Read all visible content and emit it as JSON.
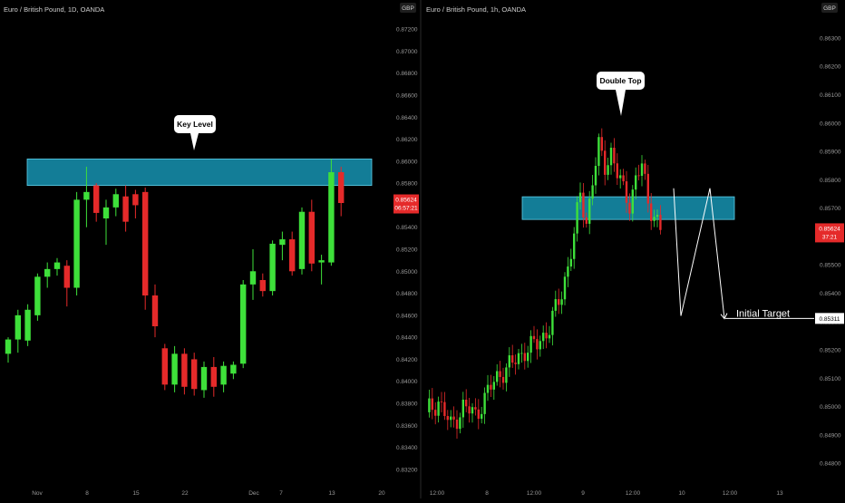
{
  "colors": {
    "background": "#000000",
    "up": "#3ee03a",
    "down": "#e52a2a",
    "zone_fill": "#1aa7c9",
    "zone_stroke": "#5fd0ea",
    "axis_text": "#9a9a9a",
    "price_tag": "#e52a2a",
    "target_tag_bg": "#ffffff",
    "divider": "#2a2a2a"
  },
  "chart_data": [
    {
      "type": "candlestick",
      "title": "Euro / British Pound, 1D, OANDA",
      "currency": "GBP",
      "y_ticks": [
        "0.87200",
        "0.87000",
        "0.86800",
        "0.86600",
        "0.86400",
        "0.86200",
        "0.86000",
        "0.85800",
        "0.85600",
        "0.85400",
        "0.85200",
        "0.85000",
        "0.84800",
        "0.84600",
        "0.84400",
        "0.84200",
        "0.84000",
        "0.83800",
        "0.83600",
        "0.83400",
        "0.83200"
      ],
      "ylim": [
        0.831,
        0.873
      ],
      "x_ticks": [
        "Nov",
        "8",
        "15",
        "22",
        "Dec",
        "7",
        "13",
        "20"
      ],
      "candles": [
        {
          "o": 0.8425,
          "h": 0.844,
          "l": 0.8417,
          "c": 0.8438
        },
        {
          "o": 0.8438,
          "h": 0.8465,
          "l": 0.8426,
          "c": 0.846
        },
        {
          "o": 0.8437,
          "h": 0.847,
          "l": 0.8432,
          "c": 0.8465
        },
        {
          "o": 0.846,
          "h": 0.8498,
          "l": 0.8455,
          "c": 0.8495
        },
        {
          "o": 0.8495,
          "h": 0.8508,
          "l": 0.8485,
          "c": 0.8502
        },
        {
          "o": 0.8502,
          "h": 0.8512,
          "l": 0.8496,
          "c": 0.8508
        },
        {
          "o": 0.8505,
          "h": 0.851,
          "l": 0.8468,
          "c": 0.8485
        },
        {
          "o": 0.8485,
          "h": 0.8572,
          "l": 0.8478,
          "c": 0.8565
        },
        {
          "o": 0.8565,
          "h": 0.8595,
          "l": 0.854,
          "c": 0.8572
        },
        {
          "o": 0.8578,
          "h": 0.858,
          "l": 0.8545,
          "c": 0.8553
        },
        {
          "o": 0.8548,
          "h": 0.8565,
          "l": 0.8524,
          "c": 0.8558
        },
        {
          "o": 0.8558,
          "h": 0.8575,
          "l": 0.855,
          "c": 0.857
        },
        {
          "o": 0.8568,
          "h": 0.8578,
          "l": 0.8536,
          "c": 0.8545
        },
        {
          "o": 0.857,
          "h": 0.8574,
          "l": 0.8548,
          "c": 0.856
        },
        {
          "o": 0.8572,
          "h": 0.8576,
          "l": 0.8465,
          "c": 0.8478
        },
        {
          "o": 0.8478,
          "h": 0.8488,
          "l": 0.844,
          "c": 0.845
        },
        {
          "o": 0.843,
          "h": 0.8434,
          "l": 0.8392,
          "c": 0.8397
        },
        {
          "o": 0.8397,
          "h": 0.8432,
          "l": 0.839,
          "c": 0.8425
        },
        {
          "o": 0.8425,
          "h": 0.843,
          "l": 0.8388,
          "c": 0.8395
        },
        {
          "o": 0.842,
          "h": 0.8426,
          "l": 0.8387,
          "c": 0.8393
        },
        {
          "o": 0.8392,
          "h": 0.8418,
          "l": 0.8385,
          "c": 0.8413
        },
        {
          "o": 0.8413,
          "h": 0.8422,
          "l": 0.8386,
          "c": 0.8395
        },
        {
          "o": 0.8397,
          "h": 0.8418,
          "l": 0.839,
          "c": 0.8414
        },
        {
          "o": 0.8407,
          "h": 0.8418,
          "l": 0.8402,
          "c": 0.8415
        },
        {
          "o": 0.8416,
          "h": 0.8492,
          "l": 0.8412,
          "c": 0.8488
        },
        {
          "o": 0.8488,
          "h": 0.852,
          "l": 0.8474,
          "c": 0.85
        },
        {
          "o": 0.8492,
          "h": 0.8498,
          "l": 0.8477,
          "c": 0.8482
        },
        {
          "o": 0.8482,
          "h": 0.8528,
          "l": 0.8478,
          "c": 0.8525
        },
        {
          "o": 0.8524,
          "h": 0.8536,
          "l": 0.851,
          "c": 0.8529
        },
        {
          "o": 0.8529,
          "h": 0.8536,
          "l": 0.8496,
          "c": 0.85
        },
        {
          "o": 0.8502,
          "h": 0.8558,
          "l": 0.8497,
          "c": 0.8554
        },
        {
          "o": 0.8554,
          "h": 0.8565,
          "l": 0.85,
          "c": 0.8507
        },
        {
          "o": 0.8508,
          "h": 0.8515,
          "l": 0.8488,
          "c": 0.851
        },
        {
          "o": 0.8508,
          "h": 0.8602,
          "l": 0.8505,
          "c": 0.859
        },
        {
          "o": 0.859,
          "h": 0.8595,
          "l": 0.855,
          "c": 0.8562
        }
      ],
      "zone": {
        "low": 0.8578,
        "high": 0.8602,
        "label": "Key Level"
      },
      "price_tag": {
        "value": 0.85624,
        "price": "0.85624",
        "countdown": "06:57:21"
      }
    },
    {
      "type": "candlestick",
      "title": "Euro / British Pound, 1h, OANDA",
      "currency": "GBP",
      "y_ticks": [
        "0.86300",
        "0.86200",
        "0.86100",
        "0.86000",
        "0.85900",
        "0.85800",
        "0.85700",
        "0.85600",
        "0.85500",
        "0.85400",
        "0.85300",
        "0.85200",
        "0.85100",
        "0.85000",
        "0.84900",
        "0.84800"
      ],
      "ylim": [
        0.8474,
        0.8637
      ],
      "x_ticks": [
        "12:00",
        "8",
        "12:00",
        "9",
        "12:00",
        "10",
        "12:00",
        "13"
      ],
      "zone": {
        "low": 0.8566,
        "high": 0.8574,
        "label": "Double Top"
      },
      "projection_path": [
        [
          0.8577,
          63
        ],
        [
          0.8532,
          66
        ],
        [
          0.8577,
          75
        ],
        [
          0.8531,
          78
        ]
      ],
      "target": {
        "value": 0.85311,
        "label": "Initial Target",
        "price": "0.85311"
      },
      "price_tag": {
        "value": 0.85624,
        "price": "0.85624",
        "countdown": "37:21"
      }
    }
  ]
}
